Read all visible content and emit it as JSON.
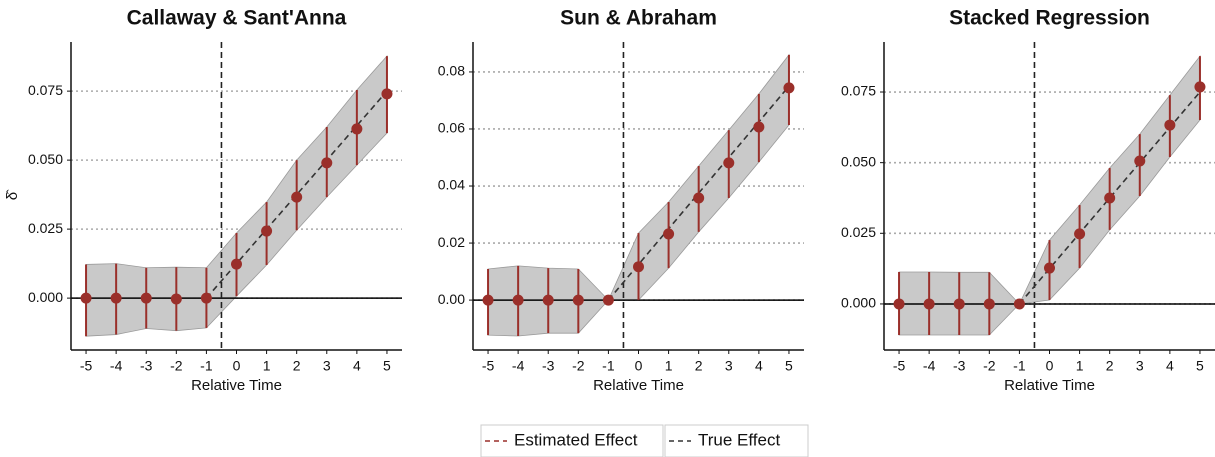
{
  "chart_data": [
    {
      "type": "errorbar",
      "title": "Callaway & Sant'Anna",
      "xlabel": "Relative Time",
      "ylabel": "δ̂",
      "x": [
        -5,
        -4,
        -3,
        -2,
        -1,
        0,
        1,
        2,
        3,
        4,
        5
      ],
      "xlim": [
        -5.5,
        5.5
      ],
      "xticks": [
        -5,
        -4,
        -3,
        -2,
        -1,
        0,
        1,
        2,
        3,
        4,
        5
      ],
      "ylim": [
        -0.0188,
        0.0928
      ],
      "yticks": [
        {
          "value": 0,
          "label": "0.000"
        },
        0.025,
        {
          "value": 0.05,
          "label": "0.050"
        },
        0.075
      ],
      "grid": true,
      "vline": -0.5,
      "hline": 0,
      "series": [
        {
          "name": "Estimated Effect",
          "color": "#9a2f2a",
          "values": [
            0,
            0,
            0,
            -0.0003,
            0,
            0.0123,
            0.0243,
            0.0366,
            0.049,
            0.0613,
            0.074
          ],
          "lower": [
            -0.0138,
            -0.0132,
            -0.011,
            -0.0118,
            -0.0108,
            0.0007,
            0.012,
            0.0246,
            0.0366,
            0.0482,
            0.0598
          ],
          "upper": [
            0.0122,
            0.0125,
            0.011,
            0.0112,
            0.011,
            0.0236,
            0.0348,
            0.05,
            0.062,
            0.0754,
            0.0877
          ]
        },
        {
          "name": "True Effect",
          "color": "#333333",
          "values": [
            null,
            null,
            null,
            null,
            0,
            0.0125,
            0.025,
            0.0375,
            0.05,
            0.0625,
            0.075
          ]
        }
      ]
    },
    {
      "type": "errorbar",
      "title": "Sun & Abraham",
      "xlabel": "Relative Time",
      "x": [
        -5,
        -4,
        -3,
        -2,
        -1,
        0,
        1,
        2,
        3,
        4,
        5
      ],
      "xlim": [
        -5.5,
        5.5
      ],
      "xticks": [
        -5,
        -4,
        -3,
        -2,
        -1,
        0,
        1,
        2,
        3,
        4,
        5
      ],
      "ylim": [
        -0.0175,
        0.0905
      ],
      "yticks": [
        {
          "value": 0,
          "label": "0.00"
        },
        0.02,
        0.04,
        0.06,
        0.08
      ],
      "grid": true,
      "vline": -0.5,
      "hline": 0,
      "series": [
        {
          "name": "Estimated Effect",
          "color": "#9a2f2a",
          "values": [
            0,
            0,
            0,
            0,
            0,
            0.0117,
            0.0232,
            0.0358,
            0.0481,
            0.0607,
            0.0744
          ],
          "lower": [
            -0.0123,
            -0.0126,
            -0.0116,
            -0.0116,
            0,
            0,
            0.0112,
            0.0239,
            0.0358,
            0.0484,
            0.0614
          ],
          "upper": [
            0.0109,
            0.012,
            0.0112,
            0.0109,
            0,
            0.0235,
            0.0344,
            0.047,
            0.0596,
            0.0723,
            0.086
          ]
        },
        {
          "name": "True Effect",
          "color": "#333333",
          "values": [
            null,
            null,
            null,
            null,
            0,
            0.0125,
            0.025,
            0.0375,
            0.05,
            0.0625,
            0.075
          ]
        }
      ]
    },
    {
      "type": "errorbar",
      "title": "Stacked Regression",
      "xlabel": "Relative Time",
      "x": [
        -5,
        -4,
        -3,
        -2,
        -1,
        0,
        1,
        2,
        3,
        4,
        5
      ],
      "xlim": [
        -5.5,
        5.5
      ],
      "xticks": [
        -5,
        -4,
        -3,
        -2,
        -1,
        0,
        1,
        2,
        3,
        4,
        5
      ],
      "ylim": [
        -0.0163,
        0.0927
      ],
      "yticks": [
        {
          "value": 0,
          "label": "0.000"
        },
        0.025,
        {
          "value": 0.05,
          "label": "0.050"
        },
        0.075
      ],
      "grid": true,
      "vline": -0.5,
      "hline": 0,
      "series": [
        {
          "name": "Estimated Effect",
          "color": "#9a2f2a",
          "values": [
            0,
            0,
            0,
            0,
            0,
            0.0127,
            0.0248,
            0.0375,
            0.0506,
            0.0633,
            0.0768
          ],
          "lower": [
            -0.011,
            -0.011,
            -0.011,
            -0.011,
            0,
            0.0014,
            0.0127,
            0.0262,
            0.0382,
            0.052,
            0.0651
          ],
          "upper": [
            0.0113,
            0.0113,
            0.0112,
            0.0112,
            0,
            0.0226,
            0.035,
            0.0481,
            0.0601,
            0.0739,
            0.0877
          ]
        },
        {
          "name": "True Effect",
          "color": "#333333",
          "values": [
            null,
            null,
            null,
            null,
            0,
            0.0125,
            0.025,
            0.0375,
            0.05,
            0.0625,
            0.075
          ]
        }
      ]
    }
  ]
}
